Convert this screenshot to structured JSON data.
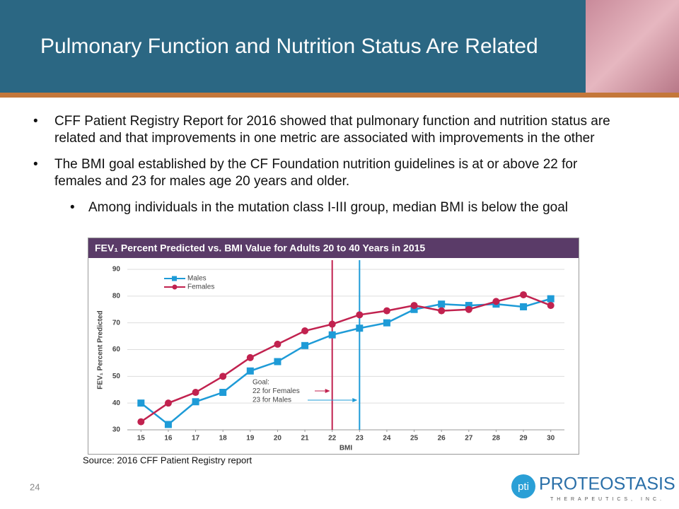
{
  "header": {
    "title": "Pulmonary Function and Nutrition Status Are Related"
  },
  "bullets": [
    {
      "level": 1,
      "text": "CFF Patient Registry Report for 2016 showed that pulmonary function and nutrition status are related and that improvements in one metric are associated with improvements in the other"
    },
    {
      "level": 1,
      "text": "The BMI goal established by the CF Foundation nutrition guidelines is at or above 22 for females and 23 for males age 20 years and older."
    },
    {
      "level": 2,
      "text": "Among individuals in the mutation class I-III group, median BMI is below the goal"
    }
  ],
  "chart_data": {
    "type": "line",
    "title": "FEV₁ Percent Predicted vs. BMI Value for Adults 20 to 40 Years in 2015",
    "x_label": "BMI",
    "y_label": "FEV₁ Percent Predicted",
    "x": [
      15,
      16,
      17,
      18,
      19,
      20,
      21,
      22,
      23,
      24,
      25,
      26,
      27,
      28,
      29,
      30
    ],
    "series": [
      {
        "name": "Males",
        "color": "#1e9bd7",
        "marker": "square",
        "values": [
          40,
          32,
          40.5,
          44,
          52,
          55.5,
          61.5,
          65.5,
          68,
          70,
          75,
          77,
          76.5,
          77,
          76,
          79
        ]
      },
      {
        "name": "Females",
        "color": "#c1224f",
        "marker": "circle",
        "values": [
          33,
          40,
          44,
          50,
          57,
          62,
          67,
          69.5,
          73,
          74.5,
          76.5,
          74.5,
          75,
          78,
          80.5,
          76.5
        ]
      }
    ],
    "xlim": [
      14.5,
      30.5
    ],
    "xticks": [
      15,
      16,
      17,
      18,
      19,
      20,
      21,
      22,
      23,
      24,
      25,
      26,
      27,
      28,
      29,
      30
    ],
    "ylim": [
      30,
      90
    ],
    "yticks": [
      30,
      40,
      50,
      60,
      70,
      80,
      90
    ],
    "grid": true,
    "legend": "upper left",
    "goal_lines": [
      {
        "value": 22,
        "color": "#c1224f"
      },
      {
        "value": 23,
        "color": "#1e9bd7"
      }
    ],
    "annotation": [
      "Goal:",
      "22 for Females",
      "23 for Males"
    ]
  },
  "source": "Source: 2016 CFF Patient Registry report",
  "page_number": "24",
  "logo": {
    "mark": "pti",
    "name": "PROTEOSTASIS",
    "tagline": "THERAPEUTICS, INC."
  }
}
